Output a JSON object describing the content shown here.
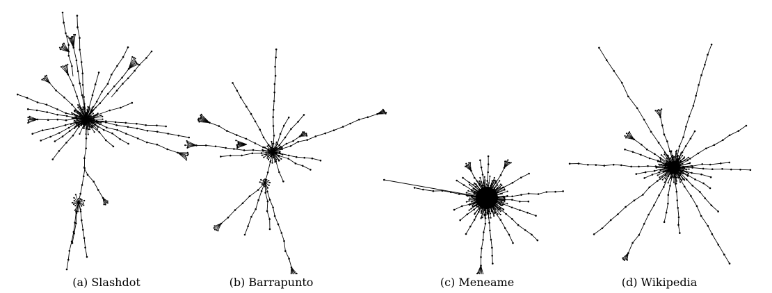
{
  "figure": {
    "panels": [
      {
        "id": "a",
        "caption": "(a) Slashdot"
      },
      {
        "id": "b",
        "caption": "(b) Barrapunto"
      },
      {
        "id": "c",
        "caption": "(c) Meneame"
      },
      {
        "id": "d",
        "caption": "(d) Wikipedia"
      }
    ]
  },
  "colors": {
    "edge": "#000000",
    "node": "#000000",
    "background": "#ffffff"
  }
}
